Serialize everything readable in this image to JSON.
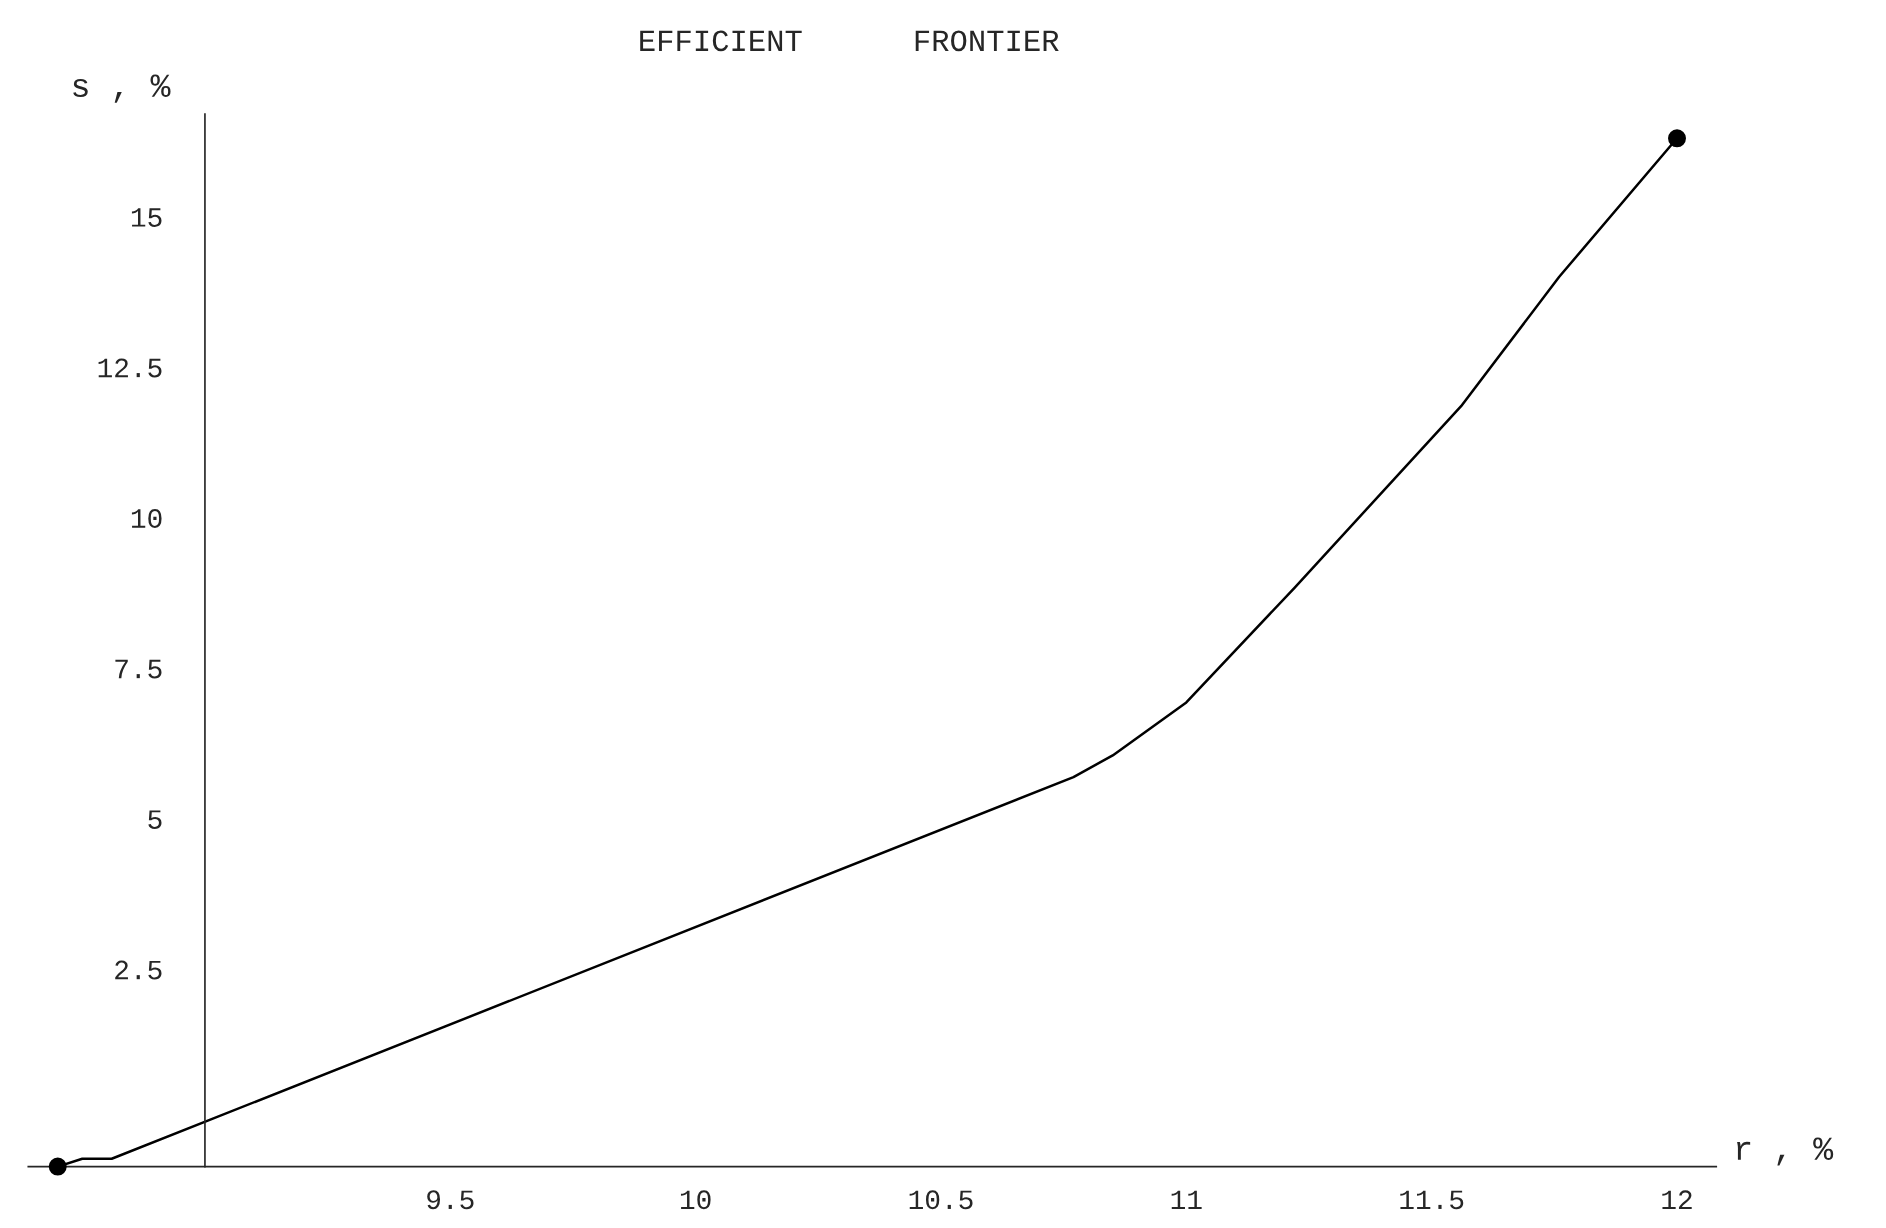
{
  "chart_data": {
    "type": "line",
    "title": "EFFICIENT      FRONTIER",
    "xlabel": "r , %",
    "ylabel": "s , %",
    "series": [
      {
        "color": "#000000",
        "x": [
          8.7,
          8.75,
          8.81,
          10.77,
          10.85,
          11.0,
          11.22,
          11.56,
          11.76,
          12.0
        ],
        "values": [
          -0.78,
          -0.65,
          -0.65,
          5.69,
          6.05,
          6.93,
          8.83,
          11.85,
          14.0,
          16.3
        ]
      },
      {
        "type": "scatter",
        "marker": "circle",
        "color": "#000000",
        "x": [
          8.7,
          12.0
        ],
        "values": [
          -0.78,
          16.3
        ]
      }
    ],
    "xlim": [
      8.64,
      12.08
    ],
    "ylim": [
      -0.78,
      16.7
    ],
    "xticks": [
      9.5,
      10,
      10.5,
      11,
      11.5,
      12
    ],
    "yticks": [
      2.5,
      5,
      7.5,
      10,
      12.5,
      15
    ],
    "grid": false,
    "legend": false,
    "marker": "none",
    "line_style": "solid"
  }
}
